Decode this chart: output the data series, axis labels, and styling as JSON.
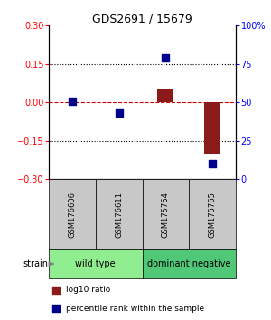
{
  "title": "GDS2691 / 15679",
  "samples": [
    "GSM176606",
    "GSM176611",
    "GSM175764",
    "GSM175765"
  ],
  "log10_ratio": [
    0.0,
    0.0,
    0.055,
    -0.2
  ],
  "percentile_rank": [
    51,
    43,
    79,
    10
  ],
  "groups": [
    {
      "label": "wild type",
      "samples": [
        0,
        1
      ],
      "color": "#90EE90"
    },
    {
      "label": "dominant negative",
      "samples": [
        2,
        3
      ],
      "color": "#50C878"
    }
  ],
  "ylim_left": [
    -0.3,
    0.3
  ],
  "ylim_right": [
    0,
    100
  ],
  "yticks_left": [
    -0.3,
    -0.15,
    0,
    0.15,
    0.3
  ],
  "yticks_right": [
    0,
    25,
    50,
    75,
    100
  ],
  "hlines_dotted": [
    -0.15,
    0.15
  ],
  "bar_color": "#8B1A1A",
  "dot_color": "#00008B",
  "bar_width": 0.35,
  "dot_size": 35,
  "zero_line_color": "#CC0000",
  "bg_sample_row": "#C8C8C8",
  "bg_group_row1": "#90EE90",
  "bg_group_row2": "#50C878"
}
